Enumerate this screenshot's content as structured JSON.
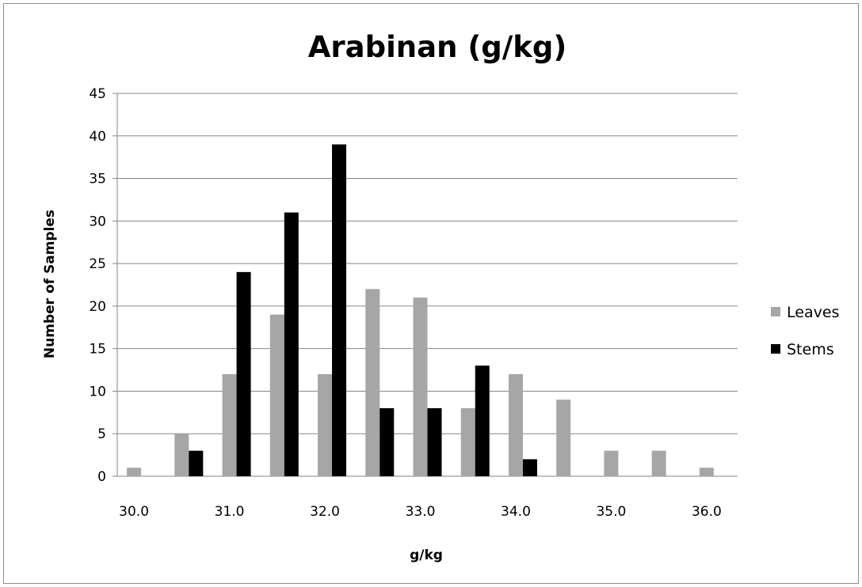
{
  "chart_data": {
    "type": "bar",
    "title": "Arabinan (g/kg)",
    "xlabel": "g/kg",
    "ylabel": "Number of Samples",
    "ylim": [
      0,
      45
    ],
    "yticks": [
      0,
      5,
      10,
      15,
      20,
      25,
      30,
      35,
      40,
      45
    ],
    "categories": [
      "30.0",
      "30.5",
      "31.0",
      "31.5",
      "32.0",
      "32.5",
      "33.0",
      "33.5",
      "34.0",
      "34.5",
      "35.0",
      "35.5",
      "36.0"
    ],
    "tick_labels": [
      "30.0",
      "",
      "31.0",
      "",
      "32.0",
      "",
      "33.0",
      "",
      "34.0",
      "",
      "35.0",
      "",
      "36.0"
    ],
    "grid": "horizontal",
    "legend_position": "right",
    "series": [
      {
        "name": "Leaves",
        "color": "#a6a6a6",
        "values": [
          1,
          5,
          12,
          19,
          12,
          22,
          21,
          8,
          12,
          9,
          3,
          3,
          1
        ]
      },
      {
        "name": "Stems",
        "color": "#000000",
        "values": [
          0,
          3,
          24,
          31,
          39,
          8,
          8,
          13,
          2,
          0,
          0,
          0,
          0
        ]
      }
    ]
  }
}
